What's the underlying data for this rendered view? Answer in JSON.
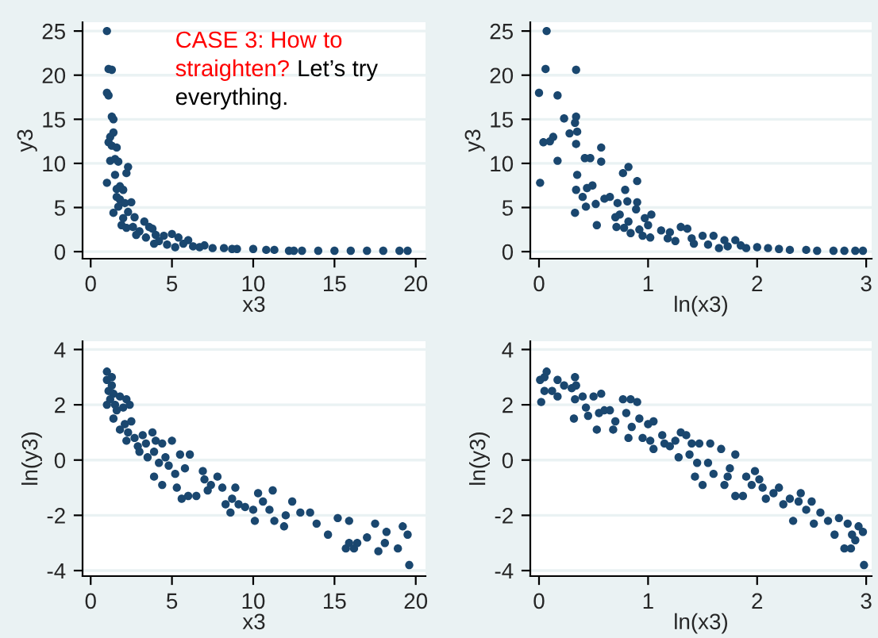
{
  "chart_data": [
    {
      "type": "scatter",
      "xlabel": "x3",
      "ylabel": "y3",
      "xlim": [
        -0.5,
        20.6
      ],
      "xticks": [
        0,
        5,
        10,
        15,
        20
      ],
      "ylim": [
        -0.8,
        26
      ],
      "yticks": [
        0,
        5,
        10,
        15,
        20,
        25
      ],
      "grid": "y",
      "marker": "circle",
      "annotations": [
        "CASE 3: How to straighten?",
        "Let’s try everything."
      ],
      "series": [
        {
          "color": "#1a476f",
          "x": [
            1.0,
            1.1,
            1.3,
            1.0,
            1.1,
            1.3,
            1.4,
            1.2,
            1.1,
            1.4,
            1.3,
            1.6,
            1.2,
            1.5,
            1.7,
            1.0,
            1.5,
            2.3,
            2.2,
            1.8,
            1.6,
            2.0,
            1.6,
            1.8,
            2.1,
            1.4,
            2.5,
            1.7,
            2.3,
            2.0,
            2.7,
            1.9,
            2.6,
            3.3,
            2.2,
            3.0,
            3.6,
            2.8,
            3.8,
            4.0,
            3.4,
            4.5,
            5.0,
            4.2,
            5.4,
            3.9,
            4.7,
            6.0,
            5.7,
            5.2,
            6.3,
            7.0,
            7.5,
            8.2,
            9.0,
            10.0,
            10.8,
            11.3,
            12.2,
            13.0,
            14.0,
            15.0,
            16.0,
            17.0,
            18.0,
            19.0,
            19.5,
            12.5,
            8.7,
            6.7
          ],
          "values": [
            25,
            20.7,
            20.6,
            18,
            17.7,
            15.3,
            15,
            13,
            12.4,
            13.5,
            12,
            11.8,
            10.3,
            10.5,
            10.2,
            7.8,
            8.7,
            9.6,
            8.9,
            7.4,
            7.1,
            7.0,
            6.2,
            5.9,
            5.5,
            4.4,
            5.6,
            5.1,
            4.5,
            3.8,
            3.9,
            3.0,
            2.8,
            3.4,
            2.7,
            2.3,
            2.8,
            1.9,
            2.6,
            1.9,
            1.6,
            1.8,
            2.0,
            1.2,
            1.6,
            0.9,
            0.8,
            1.3,
            0.9,
            0.5,
            0.6,
            0.7,
            0.4,
            0.4,
            0.3,
            0.3,
            0.2,
            0.2,
            0.1,
            0.1,
            0.1,
            0.1,
            0.1,
            0.1,
            0.1,
            0.1,
            0.1,
            0.1,
            0.3,
            0.5
          ]
        }
      ]
    },
    {
      "type": "scatter",
      "xlabel": "ln(x3)",
      "ylabel": "y3",
      "xlim": [
        -0.08,
        3.05
      ],
      "xticks": [
        0,
        1,
        2,
        3
      ],
      "ylim": [
        -0.8,
        26
      ],
      "yticks": [
        0,
        5,
        10,
        15,
        20,
        25
      ],
      "grid": "y",
      "marker": "circle",
      "series": [
        {
          "color": "#1a476f",
          "x": [
            0.07,
            0.06,
            0.34,
            0.0,
            0.17,
            0.23,
            0.34,
            0.33,
            0.28,
            0.35,
            0.04,
            0.1,
            0.13,
            0.34,
            0.57,
            0.17,
            0.42,
            0.47,
            0.57,
            0.01,
            0.35,
            0.82,
            0.77,
            0.9,
            0.44,
            0.49,
            0.34,
            0.79,
            0.4,
            0.6,
            0.65,
            0.81,
            0.9,
            0.52,
            0.72,
            0.43,
            0.33,
            0.89,
            0.74,
            1.03,
            0.97,
            0.7,
            0.82,
            0.53,
            0.71,
            1.0,
            0.78,
            0.92,
            1.12,
            1.2,
            0.84,
            1.3,
            1.36,
            0.95,
            1.02,
            1.18,
            1.25,
            1.4,
            1.5,
            1.6,
            1.42,
            1.55,
            1.7,
            1.8,
            1.73,
            1.9,
            2.0,
            2.1,
            2.2,
            2.3,
            2.45,
            2.55,
            2.7,
            2.8,
            2.9,
            2.97,
            1.65,
            1.85
          ],
          "values": [
            25,
            20.7,
            20.6,
            18,
            17.7,
            15.1,
            15.3,
            14.6,
            13.4,
            13.6,
            12.4,
            12.5,
            13,
            12.2,
            11.8,
            10.3,
            10.6,
            10.6,
            10.2,
            7.8,
            8.7,
            9.6,
            8.9,
            8,
            7.2,
            7.5,
            7.0,
            7.0,
            6.2,
            6.0,
            6.2,
            5.7,
            5.6,
            5.4,
            5.5,
            5.1,
            4.4,
            4.8,
            4.2,
            4.2,
            3.8,
            3.9,
            3.4,
            3.0,
            2.8,
            3.0,
            2.7,
            2.5,
            2.4,
            2.2,
            2.1,
            2.8,
            2.6,
            1.8,
            1.6,
            1.5,
            1.2,
            1.5,
            1.8,
            1.8,
            0.9,
            0.8,
            1.3,
            1.3,
            0.6,
            0.4,
            0.5,
            0.4,
            0.3,
            0.2,
            0.2,
            0.1,
            0.1,
            0.1,
            0.1,
            0.1,
            0.4,
            0.7
          ]
        }
      ]
    },
    {
      "type": "scatter",
      "xlabel": "x3",
      "ylabel": "ln(y3)",
      "xlim": [
        -0.5,
        20.6
      ],
      "xticks": [
        0,
        5,
        10,
        15,
        20
      ],
      "ylim": [
        -4.2,
        4.3
      ],
      "yticks": [
        -4,
        -2,
        0,
        2,
        4
      ],
      "grid": "y",
      "marker": "circle",
      "series": [
        {
          "color": "#1a476f",
          "x": [
            1.0,
            1.0,
            1.1,
            1.0,
            1.3,
            1.3,
            1.4,
            1.2,
            1.5,
            1.6,
            1.4,
            1.8,
            2.0,
            2.2,
            2.4,
            1.8,
            2.1,
            2.5,
            2.3,
            2.7,
            2.2,
            2.9,
            3.2,
            3.4,
            3.0,
            3.5,
            3.8,
            4.0,
            4.4,
            3.9,
            4.2,
            4.6,
            5.0,
            4.8,
            3.9,
            4.4,
            5.2,
            5.5,
            6.1,
            5.8,
            5.3,
            5.6,
            6.0,
            6.5,
            6.9,
            7.0,
            7.4,
            7.8,
            7.2,
            8.1,
            8.3,
            8.7,
            8.9,
            9.1,
            8.6,
            9.5,
            10.0,
            10.3,
            10.6,
            11.2,
            10.1,
            11.0,
            11.3,
            11.9,
            12.4,
            12.0,
            12.9,
            13.5,
            13.9,
            14.6,
            15.2,
            15.7,
            15.9,
            16.4,
            15.9,
            17.0,
            17.5,
            17.7,
            18.1,
            18.2,
            18.9,
            19.2,
            19.5,
            19.6,
            16.2
          ],
          "values": [
            3.2,
            2.9,
            2.5,
            2.0,
            3.0,
            2.7,
            2.4,
            2.2,
            2.0,
            1.8,
            1.5,
            2.3,
            1.9,
            2.2,
            2.0,
            1.1,
            1.3,
            1.4,
            1.0,
            0.8,
            0.7,
            0.5,
            0.9,
            0.6,
            0.3,
            0.1,
            1.0,
            0.7,
            0.6,
            0.3,
            -0.1,
            0.1,
            0.7,
            -0.2,
            -0.6,
            -0.9,
            -0.5,
            0.2,
            0.2,
            -0.3,
            -1.0,
            -1.4,
            -1.3,
            -1.3,
            -0.4,
            -0.7,
            -0.9,
            -0.6,
            -1.1,
            -1.0,
            -1.6,
            -1.4,
            -1.0,
            -1.6,
            -1.9,
            -1.7,
            -1.8,
            -1.2,
            -1.5,
            -1.1,
            -2.2,
            -1.8,
            -2.2,
            -2.4,
            -1.5,
            -2.0,
            -1.9,
            -1.9,
            -2.3,
            -2.7,
            -2.1,
            -3.2,
            -3.0,
            -3.0,
            -2.2,
            -2.8,
            -2.3,
            -3.3,
            -3.0,
            -2.6,
            -3.2,
            -2.4,
            -2.7,
            -3.8,
            -3.2
          ]
        }
      ]
    },
    {
      "type": "scatter",
      "xlabel": "ln(x3)",
      "ylabel": "ln(y3)",
      "xlim": [
        -0.08,
        3.05
      ],
      "xticks": [
        0,
        1,
        2,
        3
      ],
      "ylim": [
        -4.2,
        4.3
      ],
      "yticks": [
        -4,
        -2,
        0,
        2,
        4
      ],
      "grid": "y",
      "marker": "circle",
      "series": [
        {
          "color": "#1a476f",
          "x": [
            0.01,
            0.02,
            0.05,
            0.07,
            0.05,
            0.12,
            0.17,
            0.17,
            0.23,
            0.3,
            0.33,
            0.34,
            0.33,
            0.32,
            0.4,
            0.43,
            0.45,
            0.5,
            0.55,
            0.53,
            0.57,
            0.6,
            0.65,
            0.7,
            0.68,
            0.77,
            0.8,
            0.84,
            0.85,
            0.82,
            0.9,
            0.92,
            0.95,
            1.0,
            1.05,
            1.02,
            1.05,
            1.13,
            1.15,
            1.2,
            1.25,
            1.28,
            1.3,
            1.35,
            1.4,
            1.38,
            1.47,
            1.45,
            1.43,
            1.5,
            1.55,
            1.57,
            1.6,
            1.67,
            1.7,
            1.73,
            1.75,
            1.8,
            1.8,
            1.87,
            1.9,
            1.95,
            1.98,
            2.02,
            2.05,
            2.08,
            2.15,
            2.2,
            2.24,
            2.3,
            2.33,
            2.38,
            2.4,
            2.45,
            2.5,
            2.52,
            2.58,
            2.65,
            2.71,
            2.75,
            2.8,
            2.83,
            2.87,
            2.9,
            2.93,
            2.97,
            2.98,
            2.86
          ],
          "values": [
            2.9,
            2.1,
            3.0,
            3.2,
            2.5,
            2.5,
            2.9,
            2.3,
            2.7,
            2.6,
            3.0,
            2.7,
            2.2,
            1.5,
            2.3,
            1.9,
            1.6,
            2.3,
            1.7,
            1.1,
            2.4,
            1.8,
            1.8,
            1.4,
            1.1,
            2.2,
            1.7,
            2.2,
            1.2,
            0.8,
            2.1,
            1.5,
            0.8,
            1.3,
            1.4,
            0.7,
            0.4,
            0.9,
            0.6,
            0.5,
            0.7,
            0.1,
            1.0,
            0.9,
            0.6,
            0.2,
            0.6,
            -0.1,
            -0.6,
            -0.9,
            -0.1,
            0.6,
            -0.5,
            0.4,
            -0.9,
            -0.6,
            -0.3,
            -1.3,
            0.2,
            -1.3,
            -0.6,
            -0.9,
            -0.4,
            -0.7,
            -1.0,
            -1.4,
            -1.2,
            -1.0,
            -1.6,
            -1.4,
            -2.2,
            -1.5,
            -1.2,
            -1.8,
            -1.5,
            -2.3,
            -1.9,
            -2.2,
            -2.7,
            -2.1,
            -3.2,
            -2.3,
            -2.7,
            -2.9,
            -2.4,
            -2.6,
            -3.8,
            -3.2
          ]
        }
      ]
    }
  ]
}
